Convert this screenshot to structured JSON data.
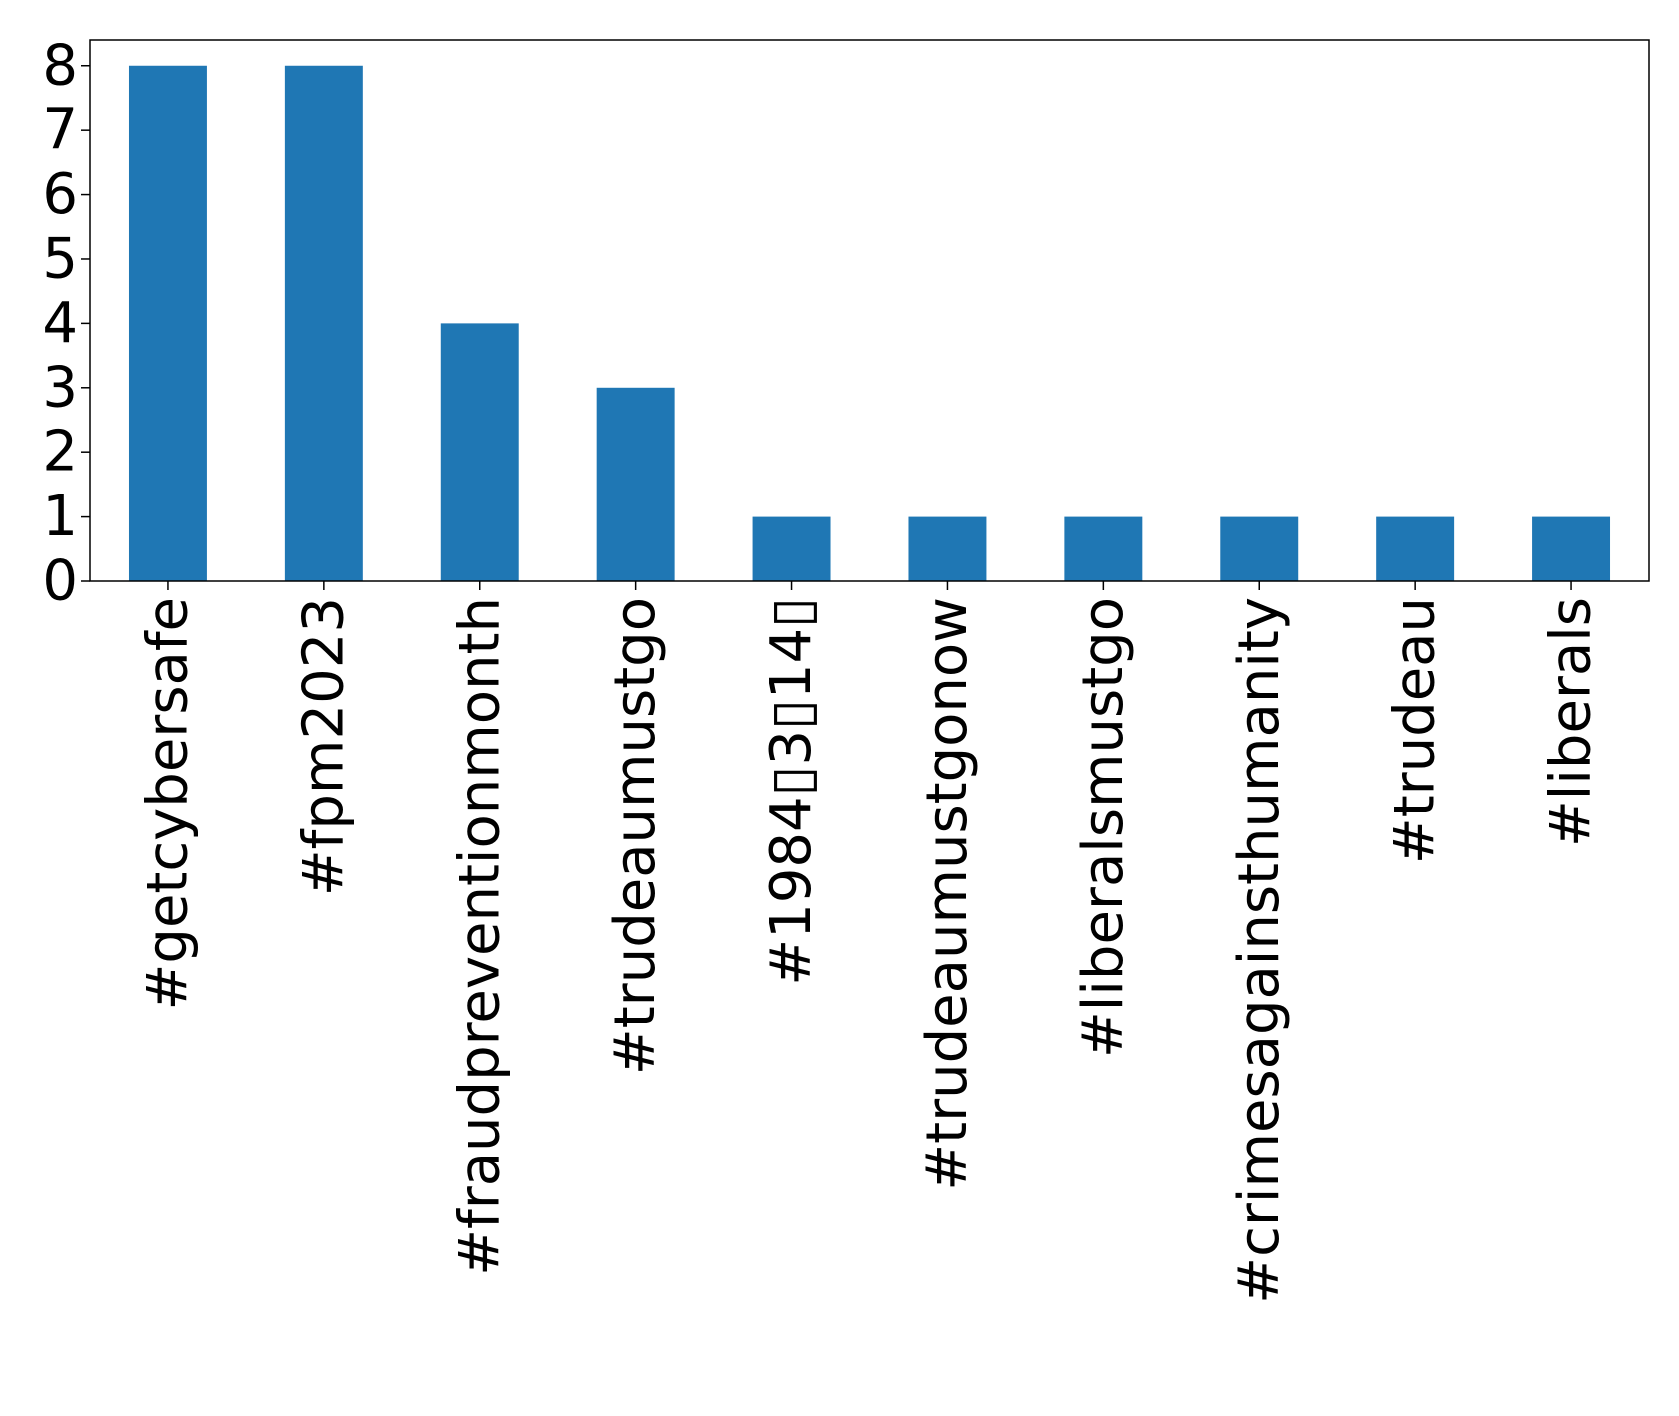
{
  "chart_data": {
    "type": "bar",
    "title": "",
    "xlabel": "",
    "ylabel": "",
    "categories": [
      "#getcybersafe",
      "#fpm2023",
      "#fraudpreventionmonth",
      "#trudeaumustgo",
      "#1984▯3▯14▯",
      "#trudeaumustgonow",
      "#liberalsmustgo",
      "#crimesagainsthumanity",
      "#trudeau",
      "#liberals"
    ],
    "values": [
      8,
      8,
      4,
      3,
      1,
      1,
      1,
      1,
      1,
      1
    ],
    "ylim": [
      0,
      8.4
    ],
    "yticks": [
      0,
      1,
      2,
      3,
      4,
      5,
      6,
      7,
      8
    ],
    "bar_color": "#1f77b4",
    "grid": false,
    "legend": "none"
  }
}
